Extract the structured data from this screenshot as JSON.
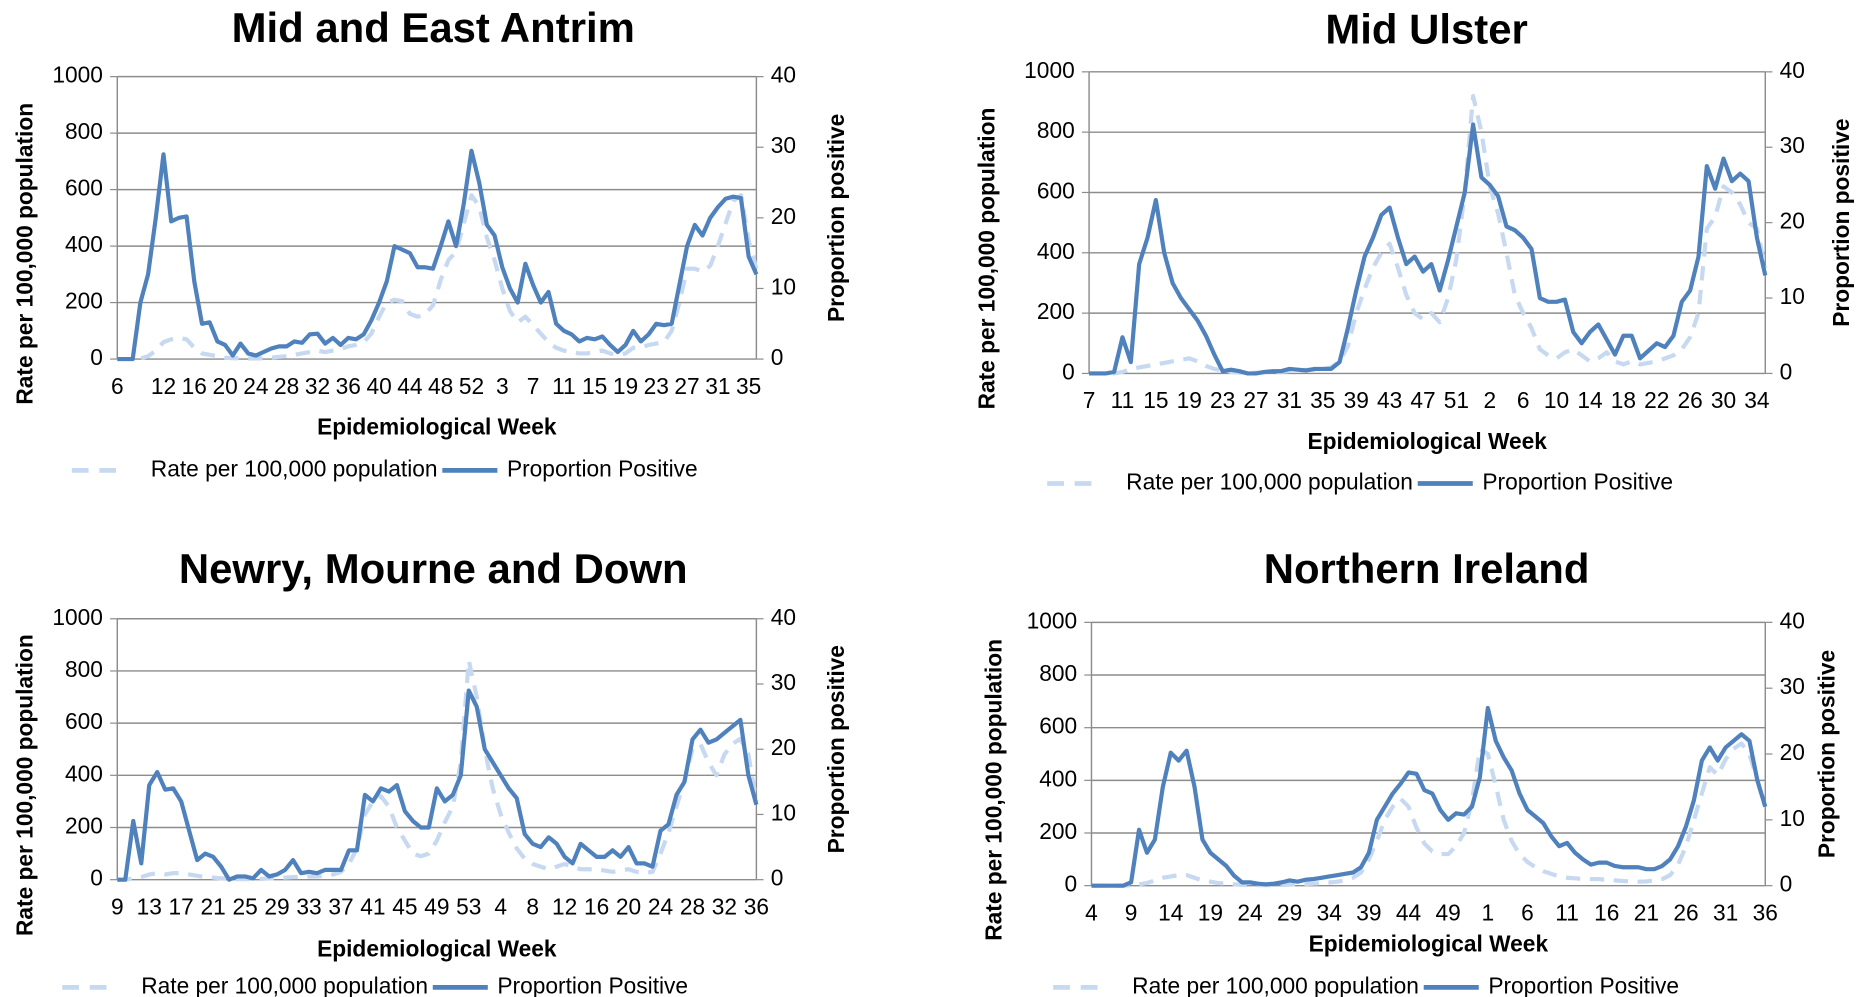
{
  "chart_data": [
    {
      "type": "line",
      "title": "Mid and East Antrim",
      "x_label": "Epidemiological Week",
      "y_label": "Rate per 100,000 population",
      "y2_label": "Proportion positive",
      "categories": [
        "6",
        null,
        null,
        null,
        null,
        null,
        "12",
        null,
        null,
        null,
        "16",
        null,
        null,
        null,
        "20",
        null,
        null,
        null,
        "24",
        null,
        null,
        null,
        "28",
        null,
        null,
        null,
        "32",
        null,
        null,
        null,
        "36",
        null,
        null,
        null,
        "40",
        null,
        null,
        null,
        "44",
        null,
        null,
        null,
        "48",
        null,
        null,
        null,
        "52",
        null,
        null,
        null,
        "3",
        null,
        null,
        null,
        "7",
        null,
        null,
        null,
        "11",
        null,
        null,
        null,
        "15",
        null,
        null,
        null,
        "19",
        null,
        null,
        null,
        "23",
        null,
        null,
        null,
        "27",
        null,
        null,
        null,
        "31",
        null,
        null,
        null,
        "35",
        null
      ],
      "ylim": [
        0,
        1000
      ],
      "yticks": [
        0,
        200,
        400,
        600,
        800,
        1000
      ],
      "y2lim": [
        0,
        40
      ],
      "y2ticks": [
        0,
        10,
        20,
        30,
        40
      ],
      "grid": true,
      "legend": "bottom",
      "series": [
        {
          "name": "Rate per 100,000 population",
          "color": "#c6d9f1",
          "dashed": true,
          "values": [
            0,
            0,
            0,
            2,
            10,
            30,
            60,
            70,
            75,
            70,
            40,
            20,
            15,
            10,
            5,
            3,
            3,
            2,
            2,
            3,
            5,
            8,
            10,
            15,
            20,
            25,
            30,
            25,
            30,
            35,
            45,
            50,
            60,
            90,
            150,
            200,
            210,
            205,
            160,
            150,
            160,
            190,
            280,
            350,
            380,
            480,
            580,
            540,
            430,
            350,
            250,
            170,
            130,
            150,
            120,
            90,
            60,
            40,
            30,
            25,
            20,
            20,
            25,
            30,
            20,
            15,
            20,
            40,
            40,
            50,
            55,
            60,
            100,
            200,
            320,
            320,
            310,
            330,
            400,
            480,
            560,
            580,
            420,
            320
          ]
        },
        {
          "name": "Proportion Positive",
          "color": "#4f81bd",
          "axis": "y2",
          "values": [
            0,
            0,
            0,
            8,
            12,
            20,
            29,
            19.5,
            20,
            20.2,
            11,
            5,
            5.2,
            2.5,
            2,
            0.5,
            2.2,
            0.8,
            0.5,
            1,
            1.5,
            1.8,
            1.8,
            2.5,
            2.3,
            3.5,
            3.6,
            2.2,
            3,
            2,
            3,
            2.8,
            3.5,
            5.5,
            8,
            11,
            16,
            15.5,
            15,
            13,
            13,
            12.8,
            16,
            19.5,
            16,
            22,
            29.5,
            25,
            19,
            17.5,
            13,
            10,
            8,
            13.5,
            10.5,
            8,
            9.5,
            5,
            4,
            3.5,
            2.5,
            3,
            2.8,
            3.2,
            2,
            1,
            2,
            4,
            2.5,
            3.5,
            5,
            4.8,
            5,
            10.5,
            16,
            19,
            17.5,
            20,
            21.5,
            22.7,
            23,
            22.8,
            14.5,
            12
          ]
        }
      ]
    },
    {
      "type": "line",
      "title": "Mid Ulster",
      "x_label": "Epidemiological Week",
      "y_label": "Rate per 100,000 population",
      "y2_label": "Proportion positive",
      "categories": [
        "7",
        null,
        null,
        null,
        "11",
        null,
        null,
        null,
        "15",
        null,
        null,
        null,
        "19",
        null,
        null,
        null,
        "23",
        null,
        null,
        null,
        "27",
        null,
        null,
        null,
        "31",
        null,
        null,
        null,
        "35",
        null,
        null,
        null,
        "39",
        null,
        null,
        null,
        "43",
        null,
        null,
        null,
        "47",
        null,
        null,
        null,
        "51",
        null,
        null,
        null,
        "2",
        null,
        null,
        null,
        "6",
        null,
        null,
        null,
        "10",
        null,
        null,
        null,
        "14",
        null,
        null,
        null,
        "18",
        null,
        null,
        null,
        "22",
        null,
        null,
        null,
        "26",
        null,
        null,
        null,
        "30",
        null,
        null,
        null,
        "34",
        null
      ],
      "ylim": [
        0,
        1000
      ],
      "yticks": [
        0,
        200,
        400,
        600,
        800,
        1000
      ],
      "y2lim": [
        0,
        40
      ],
      "y2ticks": [
        0,
        10,
        20,
        30,
        40
      ],
      "grid": true,
      "legend": "bottom",
      "series": [
        {
          "name": "Rate per 100,000 population",
          "color": "#c6d9f1",
          "dashed": true,
          "values": [
            0,
            0,
            0,
            0,
            5,
            15,
            20,
            25,
            30,
            35,
            40,
            45,
            50,
            40,
            25,
            15,
            10,
            5,
            3,
            2,
            2,
            3,
            4,
            5,
            8,
            10,
            12,
            12,
            15,
            20,
            40,
            90,
            200,
            280,
            350,
            400,
            430,
            350,
            260,
            200,
            180,
            200,
            170,
            250,
            380,
            600,
            920,
            800,
            620,
            530,
            400,
            260,
            200,
            150,
            80,
            60,
            50,
            70,
            80,
            60,
            40,
            50,
            70,
            40,
            30,
            40,
            30,
            35,
            40,
            50,
            60,
            80,
            120,
            200,
            480,
            520,
            620,
            600,
            560,
            500,
            480,
            350
          ]
        },
        {
          "name": "Proportion Positive",
          "color": "#4f81bd",
          "axis": "y2",
          "values": [
            0,
            0,
            0,
            0.2,
            4.8,
            1.5,
            14.5,
            18,
            23,
            16,
            12,
            10,
            8.5,
            7,
            5,
            2.5,
            0.3,
            0.5,
            0.3,
            0,
            0,
            0.2,
            0.3,
            0.3,
            0.6,
            0.5,
            0.4,
            0.6,
            0.6,
            0.6,
            1.5,
            6,
            11,
            15.5,
            18,
            21,
            22,
            18,
            14.5,
            15.5,
            13.5,
            14.5,
            11,
            15,
            19.5,
            24,
            33,
            26,
            25,
            23.5,
            19.5,
            19,
            18,
            16.5,
            10,
            9.5,
            9.5,
            9.8,
            5.5,
            4,
            5.5,
            6.5,
            4.5,
            2.5,
            5,
            5,
            2,
            3,
            4,
            3.5,
            5,
            9.5,
            11,
            15.5,
            27.5,
            24.5,
            28.5,
            25.5,
            26.5,
            25.5,
            18,
            13
          ]
        }
      ]
    },
    {
      "type": "line",
      "title": "Newry, Mourne and Down",
      "x_label": "Epidemiological Week",
      "y_label": "Rate per 100,000 population",
      "y2_label": "Proportion positive",
      "categories": [
        "9",
        null,
        null,
        null,
        "13",
        null,
        null,
        null,
        "17",
        null,
        null,
        null,
        "21",
        null,
        null,
        null,
        "25",
        null,
        null,
        null,
        "29",
        null,
        null,
        null,
        "33",
        null,
        null,
        null,
        "37",
        null,
        null,
        null,
        "41",
        null,
        null,
        null,
        "45",
        null,
        null,
        null,
        "49",
        null,
        null,
        null,
        "53",
        null,
        null,
        null,
        "4",
        null,
        null,
        null,
        "8",
        null,
        null,
        null,
        "12",
        null,
        null,
        null,
        "16",
        null,
        null,
        null,
        "20",
        null,
        null,
        null,
        "24",
        null,
        null,
        null,
        "28",
        null,
        null,
        null,
        "32",
        null,
        null,
        null,
        "36"
      ],
      "ylim": [
        0,
        1000
      ],
      "yticks": [
        0,
        200,
        400,
        600,
        800,
        1000
      ],
      "y2lim": [
        0,
        40
      ],
      "y2ticks": [
        0,
        10,
        20,
        30,
        40
      ],
      "grid": true,
      "legend": "bottom",
      "series": [
        {
          "name": "Rate per 100,000 population",
          "color": "#c6d9f1",
          "dashed": true,
          "values": [
            0,
            0,
            5,
            10,
            20,
            25,
            20,
            25,
            25,
            20,
            15,
            10,
            8,
            5,
            3,
            2,
            2,
            2,
            3,
            5,
            5,
            8,
            10,
            10,
            12,
            12,
            15,
            20,
            30,
            60,
            120,
            250,
            300,
            320,
            280,
            200,
            150,
            100,
            90,
            100,
            150,
            220,
            280,
            450,
            840,
            700,
            500,
            350,
            250,
            180,
            120,
            80,
            60,
            50,
            40,
            50,
            60,
            50,
            40,
            40,
            40,
            35,
            30,
            35,
            40,
            30,
            25,
            30,
            100,
            180,
            280,
            380,
            500,
            520,
            450,
            400,
            480,
            520,
            540,
            480,
            300
          ]
        },
        {
          "name": "Proportion Positive",
          "color": "#4f81bd",
          "axis": "y2",
          "values": [
            0,
            0,
            9,
            2.5,
            14.5,
            16.5,
            13.8,
            14,
            12,
            7.5,
            3,
            4,
            3.5,
            2,
            0,
            0.5,
            0.5,
            0.2,
            1.5,
            0.5,
            0.8,
            1.5,
            3,
            1,
            1.2,
            1,
            1.5,
            1.5,
            1.5,
            4.5,
            4.5,
            13,
            12,
            14,
            13.5,
            14.5,
            10.5,
            9,
            8,
            8,
            14,
            12,
            13,
            16,
            29,
            26.5,
            20,
            18,
            16,
            14,
            12.5,
            7,
            5.5,
            5,
            6.5,
            5.5,
            3.5,
            2.5,
            5.5,
            4.5,
            3.5,
            3.5,
            4.5,
            3.5,
            5,
            2.5,
            2.5,
            2,
            7.5,
            8.5,
            13,
            15,
            21.5,
            23,
            21,
            21.5,
            22.5,
            23.5,
            24.5,
            16,
            11.5
          ]
        }
      ]
    },
    {
      "type": "line",
      "title": "Northern Ireland",
      "x_label": "Epidemiological Week",
      "y_label": "Rate per 100,000 population",
      "y2_label": "Proportion positive",
      "categories": [
        "4",
        null,
        null,
        null,
        null,
        "9",
        null,
        null,
        null,
        null,
        "14",
        null,
        null,
        null,
        null,
        "19",
        null,
        null,
        null,
        null,
        "24",
        null,
        null,
        null,
        null,
        "29",
        null,
        null,
        null,
        null,
        "34",
        null,
        null,
        null,
        null,
        "39",
        null,
        null,
        null,
        null,
        "44",
        null,
        null,
        null,
        null,
        "49",
        null,
        null,
        null,
        null,
        "1",
        null,
        null,
        null,
        null,
        "6",
        null,
        null,
        null,
        null,
        "11",
        null,
        null,
        null,
        null,
        "16",
        null,
        null,
        null,
        null,
        "21",
        null,
        null,
        null,
        null,
        "26",
        null,
        null,
        null,
        null,
        "31",
        null,
        null,
        null,
        null,
        "36"
      ],
      "ylim": [
        0,
        1000
      ],
      "yticks": [
        0,
        200,
        400,
        600,
        800,
        1000
      ],
      "y2lim": [
        0,
        40
      ],
      "y2ticks": [
        0,
        10,
        20,
        30,
        40
      ],
      "grid": true,
      "legend": "bottom",
      "series": [
        {
          "name": "Rate per 100,000 population",
          "color": "#c6d9f1",
          "dashed": true,
          "values": [
            0,
            0,
            0,
            0,
            0,
            2,
            5,
            10,
            20,
            30,
            35,
            40,
            40,
            30,
            20,
            15,
            10,
            8,
            5,
            3,
            2,
            2,
            2,
            2,
            3,
            4,
            5,
            6,
            8,
            10,
            12,
            15,
            20,
            30,
            50,
            100,
            170,
            250,
            300,
            330,
            300,
            220,
            160,
            130,
            120,
            120,
            150,
            200,
            320,
            520,
            500,
            380,
            250,
            170,
            120,
            90,
            70,
            55,
            45,
            35,
            30,
            28,
            25,
            25,
            25,
            22,
            20,
            18,
            16,
            15,
            16,
            20,
            25,
            40,
            80,
            150,
            250,
            350,
            450,
            420,
            480,
            520,
            540,
            500,
            400,
            300
          ]
        },
        {
          "name": "Proportion Positive",
          "color": "#4f81bd",
          "axis": "y2",
          "values": [
            0,
            0,
            0,
            0,
            0,
            0.5,
            8.5,
            5,
            7,
            15,
            20.2,
            19,
            20.5,
            15,
            7,
            5,
            4,
            3,
            1.5,
            0.5,
            0.5,
            0.3,
            0.2,
            0.3,
            0.5,
            0.8,
            0.6,
            0.9,
            1,
            1.2,
            1.4,
            1.6,
            1.8,
            2,
            2.8,
            5,
            10,
            12,
            14,
            15.5,
            17.2,
            17,
            14.5,
            14,
            11.5,
            10,
            11,
            10.8,
            12,
            16.5,
            27,
            22,
            19.5,
            17.5,
            14,
            11.5,
            10.5,
            9.5,
            7.5,
            6,
            6.5,
            5,
            4,
            3.2,
            3.5,
            3.5,
            3,
            2.8,
            2.8,
            2.8,
            2.5,
            2.5,
            3,
            4,
            6,
            9,
            13,
            19,
            21,
            19,
            21,
            22,
            23,
            22,
            16,
            12
          ]
        }
      ]
    }
  ]
}
